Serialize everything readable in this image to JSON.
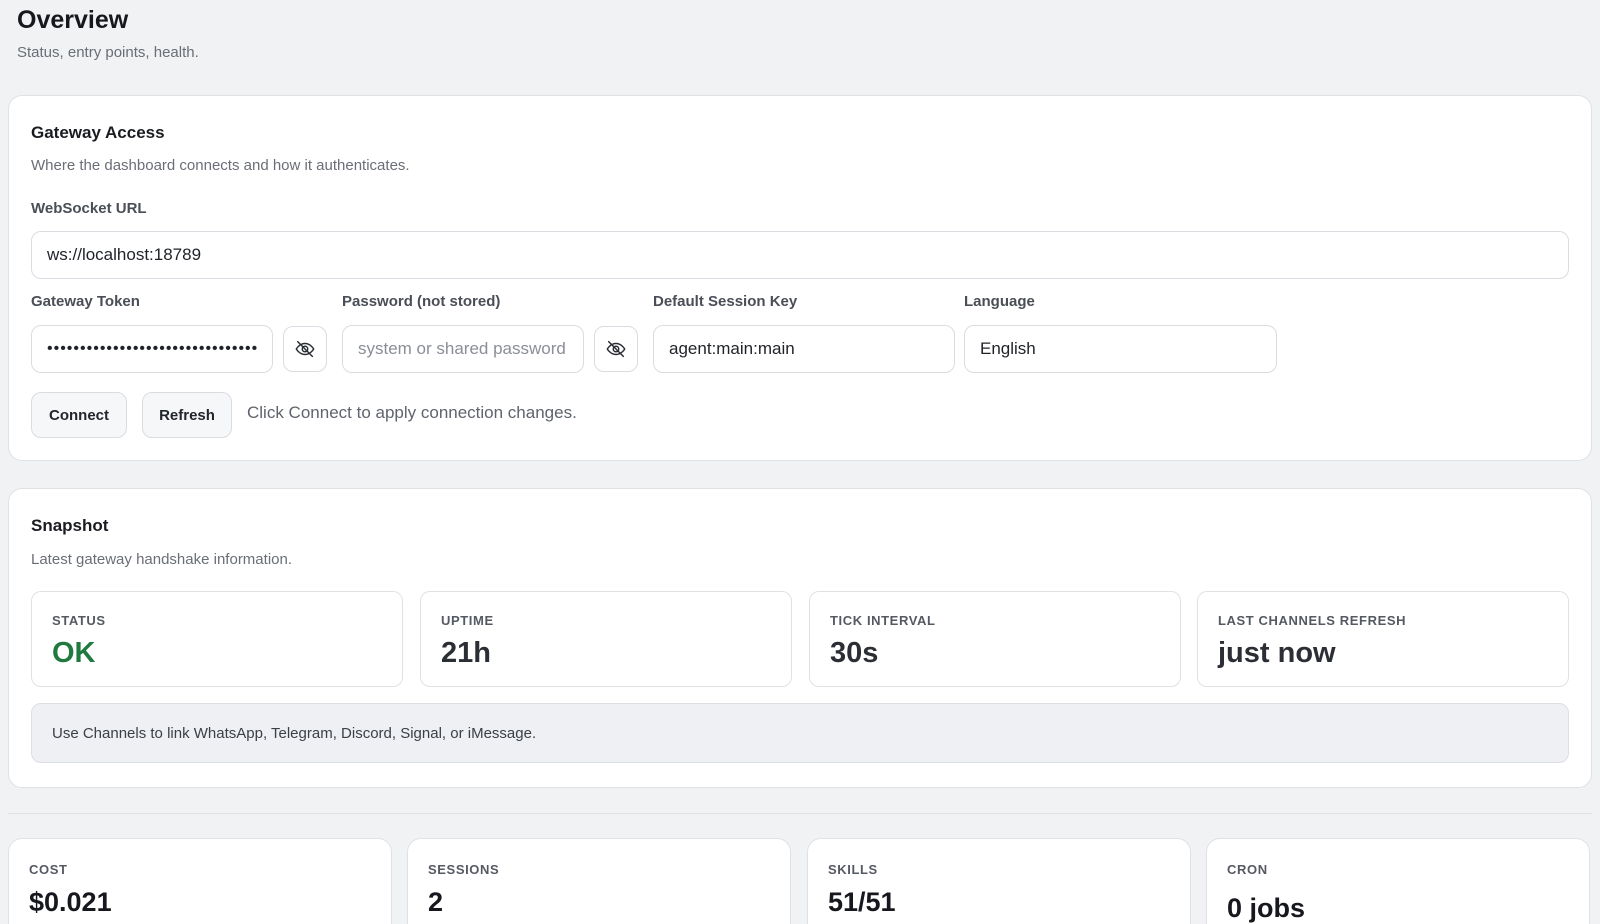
{
  "header": {
    "title": "Overview",
    "subtitle": "Status, entry points, health."
  },
  "gateway": {
    "title": "Gateway Access",
    "subtitle": "Where the dashboard connects and how it authenticates.",
    "websocket_label": "WebSocket URL",
    "websocket_value": "ws://localhost:18789",
    "token_label": "Gateway Token",
    "token_value": "••••••••••••••••••••••••••••••••",
    "password_label": "Password (not stored)",
    "password_placeholder": "system or shared password",
    "session_key_label": "Default Session Key",
    "session_key_value": "agent:main:main",
    "language_label": "Language",
    "language_value": "English",
    "connect_label": "Connect",
    "refresh_label": "Refresh",
    "hint": "Click Connect to apply connection changes.",
    "toggle_icon": "eye-off-icon"
  },
  "snapshot": {
    "title": "Snapshot",
    "subtitle": "Latest gateway handshake information.",
    "stats": [
      {
        "label": "STATUS",
        "value": "OK"
      },
      {
        "label": "UPTIME",
        "value": "21h"
      },
      {
        "label": "TICK INTERVAL",
        "value": "30s"
      },
      {
        "label": "LAST CHANNELS REFRESH",
        "value": "just now"
      }
    ],
    "banner": "Use Channels to link WhatsApp, Telegram, Discord, Signal, or iMessage."
  },
  "metrics": [
    {
      "label": "COST",
      "value": "$0.021"
    },
    {
      "label": "SESSIONS",
      "value": "2"
    },
    {
      "label": "SKILLS",
      "value": "51/51"
    },
    {
      "label": "CRON",
      "value": "0 jobs"
    }
  ],
  "colors": {
    "ok_status": "#1f7a3f",
    "background": "#f1f2f4"
  }
}
